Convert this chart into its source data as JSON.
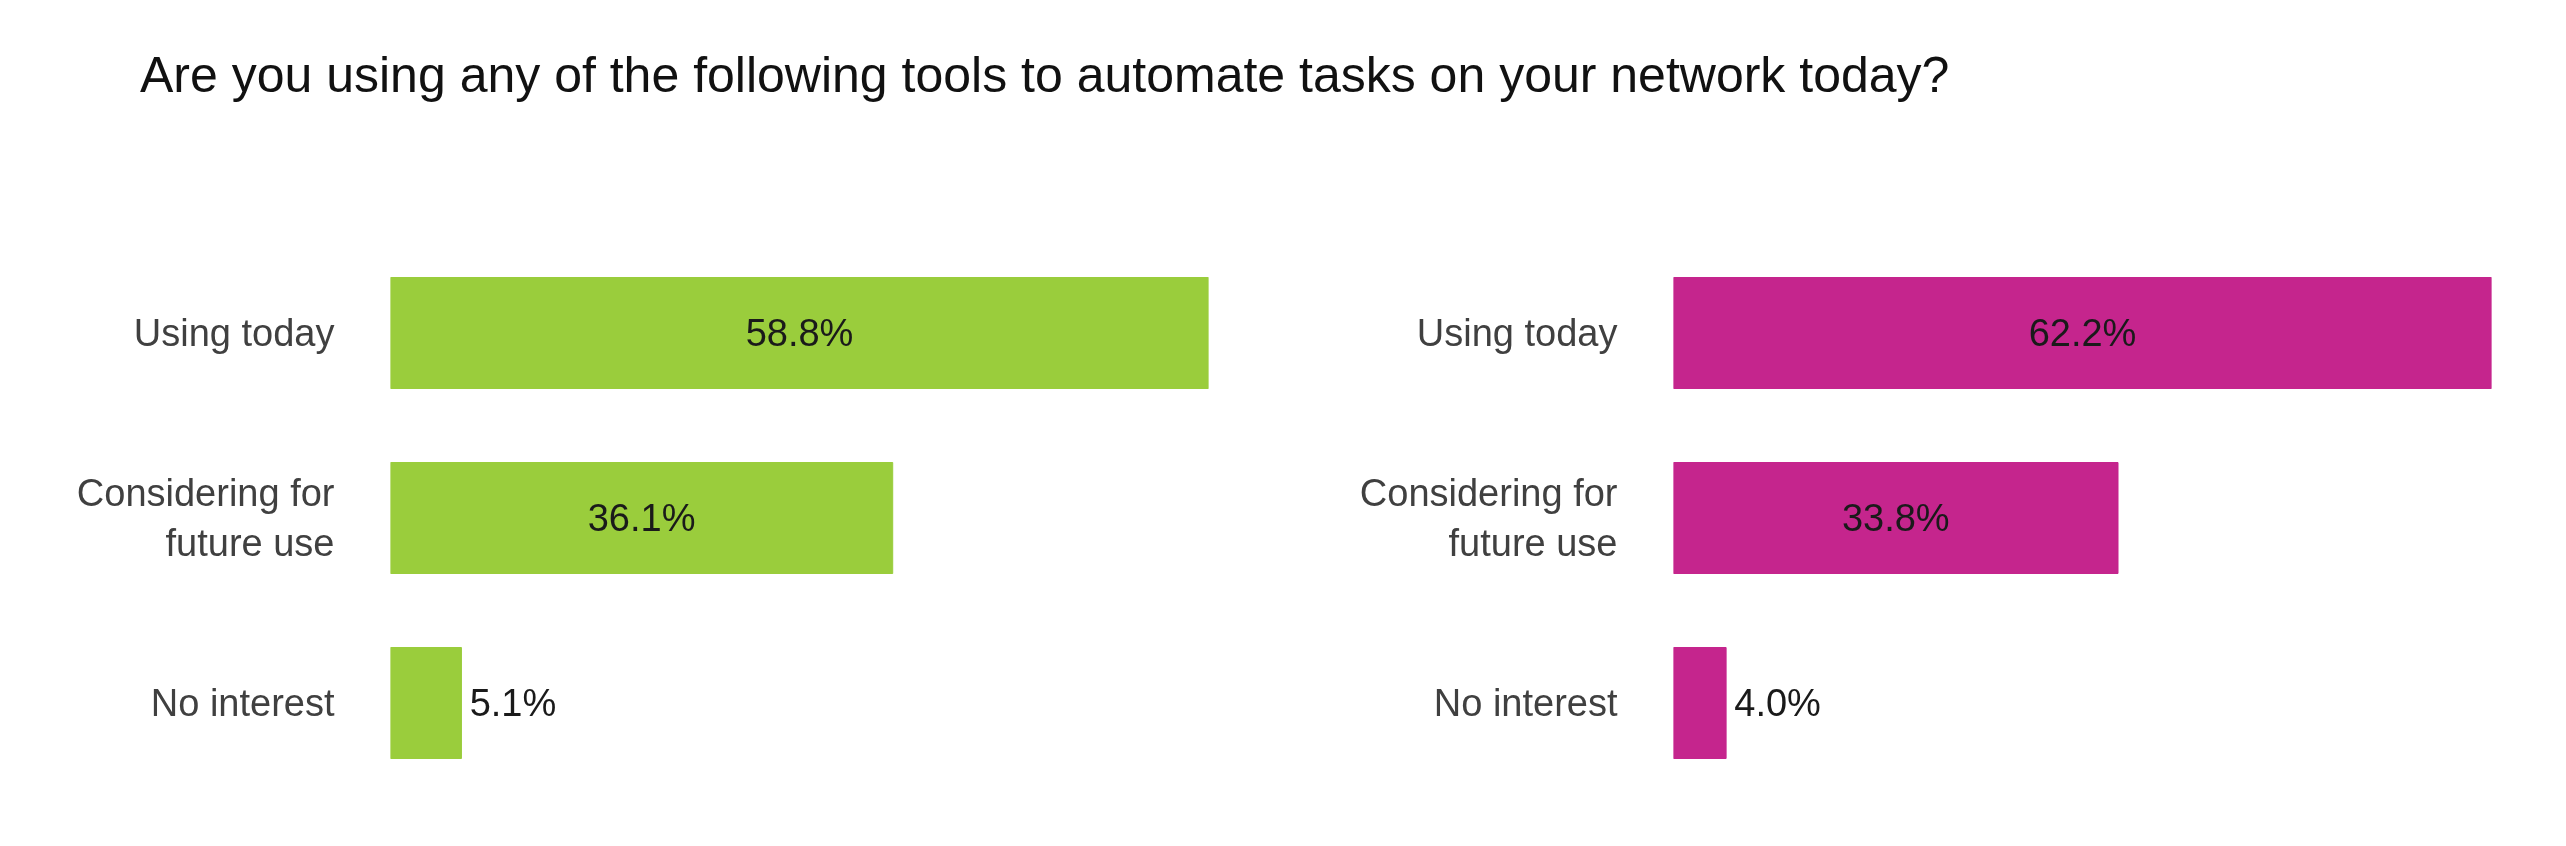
{
  "chart_data": [
    {
      "type": "bar",
      "orientation": "horizontal",
      "title": "Are you using any of the following tools to automate tasks on your network today?",
      "categories": [
        "Using today",
        "Considering for future use",
        "No interest"
      ],
      "values": [
        58.8,
        36.1,
        5.1
      ],
      "value_labels": [
        "58.8%",
        "36.1%",
        "5.1%"
      ],
      "color": "#9acd3c",
      "tick_labels": "y"
    },
    {
      "type": "bar",
      "orientation": "horizontal",
      "categories": [
        "Using today",
        "Considering for future use",
        "No interest"
      ],
      "values": [
        62.2,
        33.8,
        4.0
      ],
      "value_labels": [
        "62.2%",
        "33.8%",
        "4.0%"
      ],
      "color": "#c5258d",
      "tick_labels": "y"
    }
  ]
}
